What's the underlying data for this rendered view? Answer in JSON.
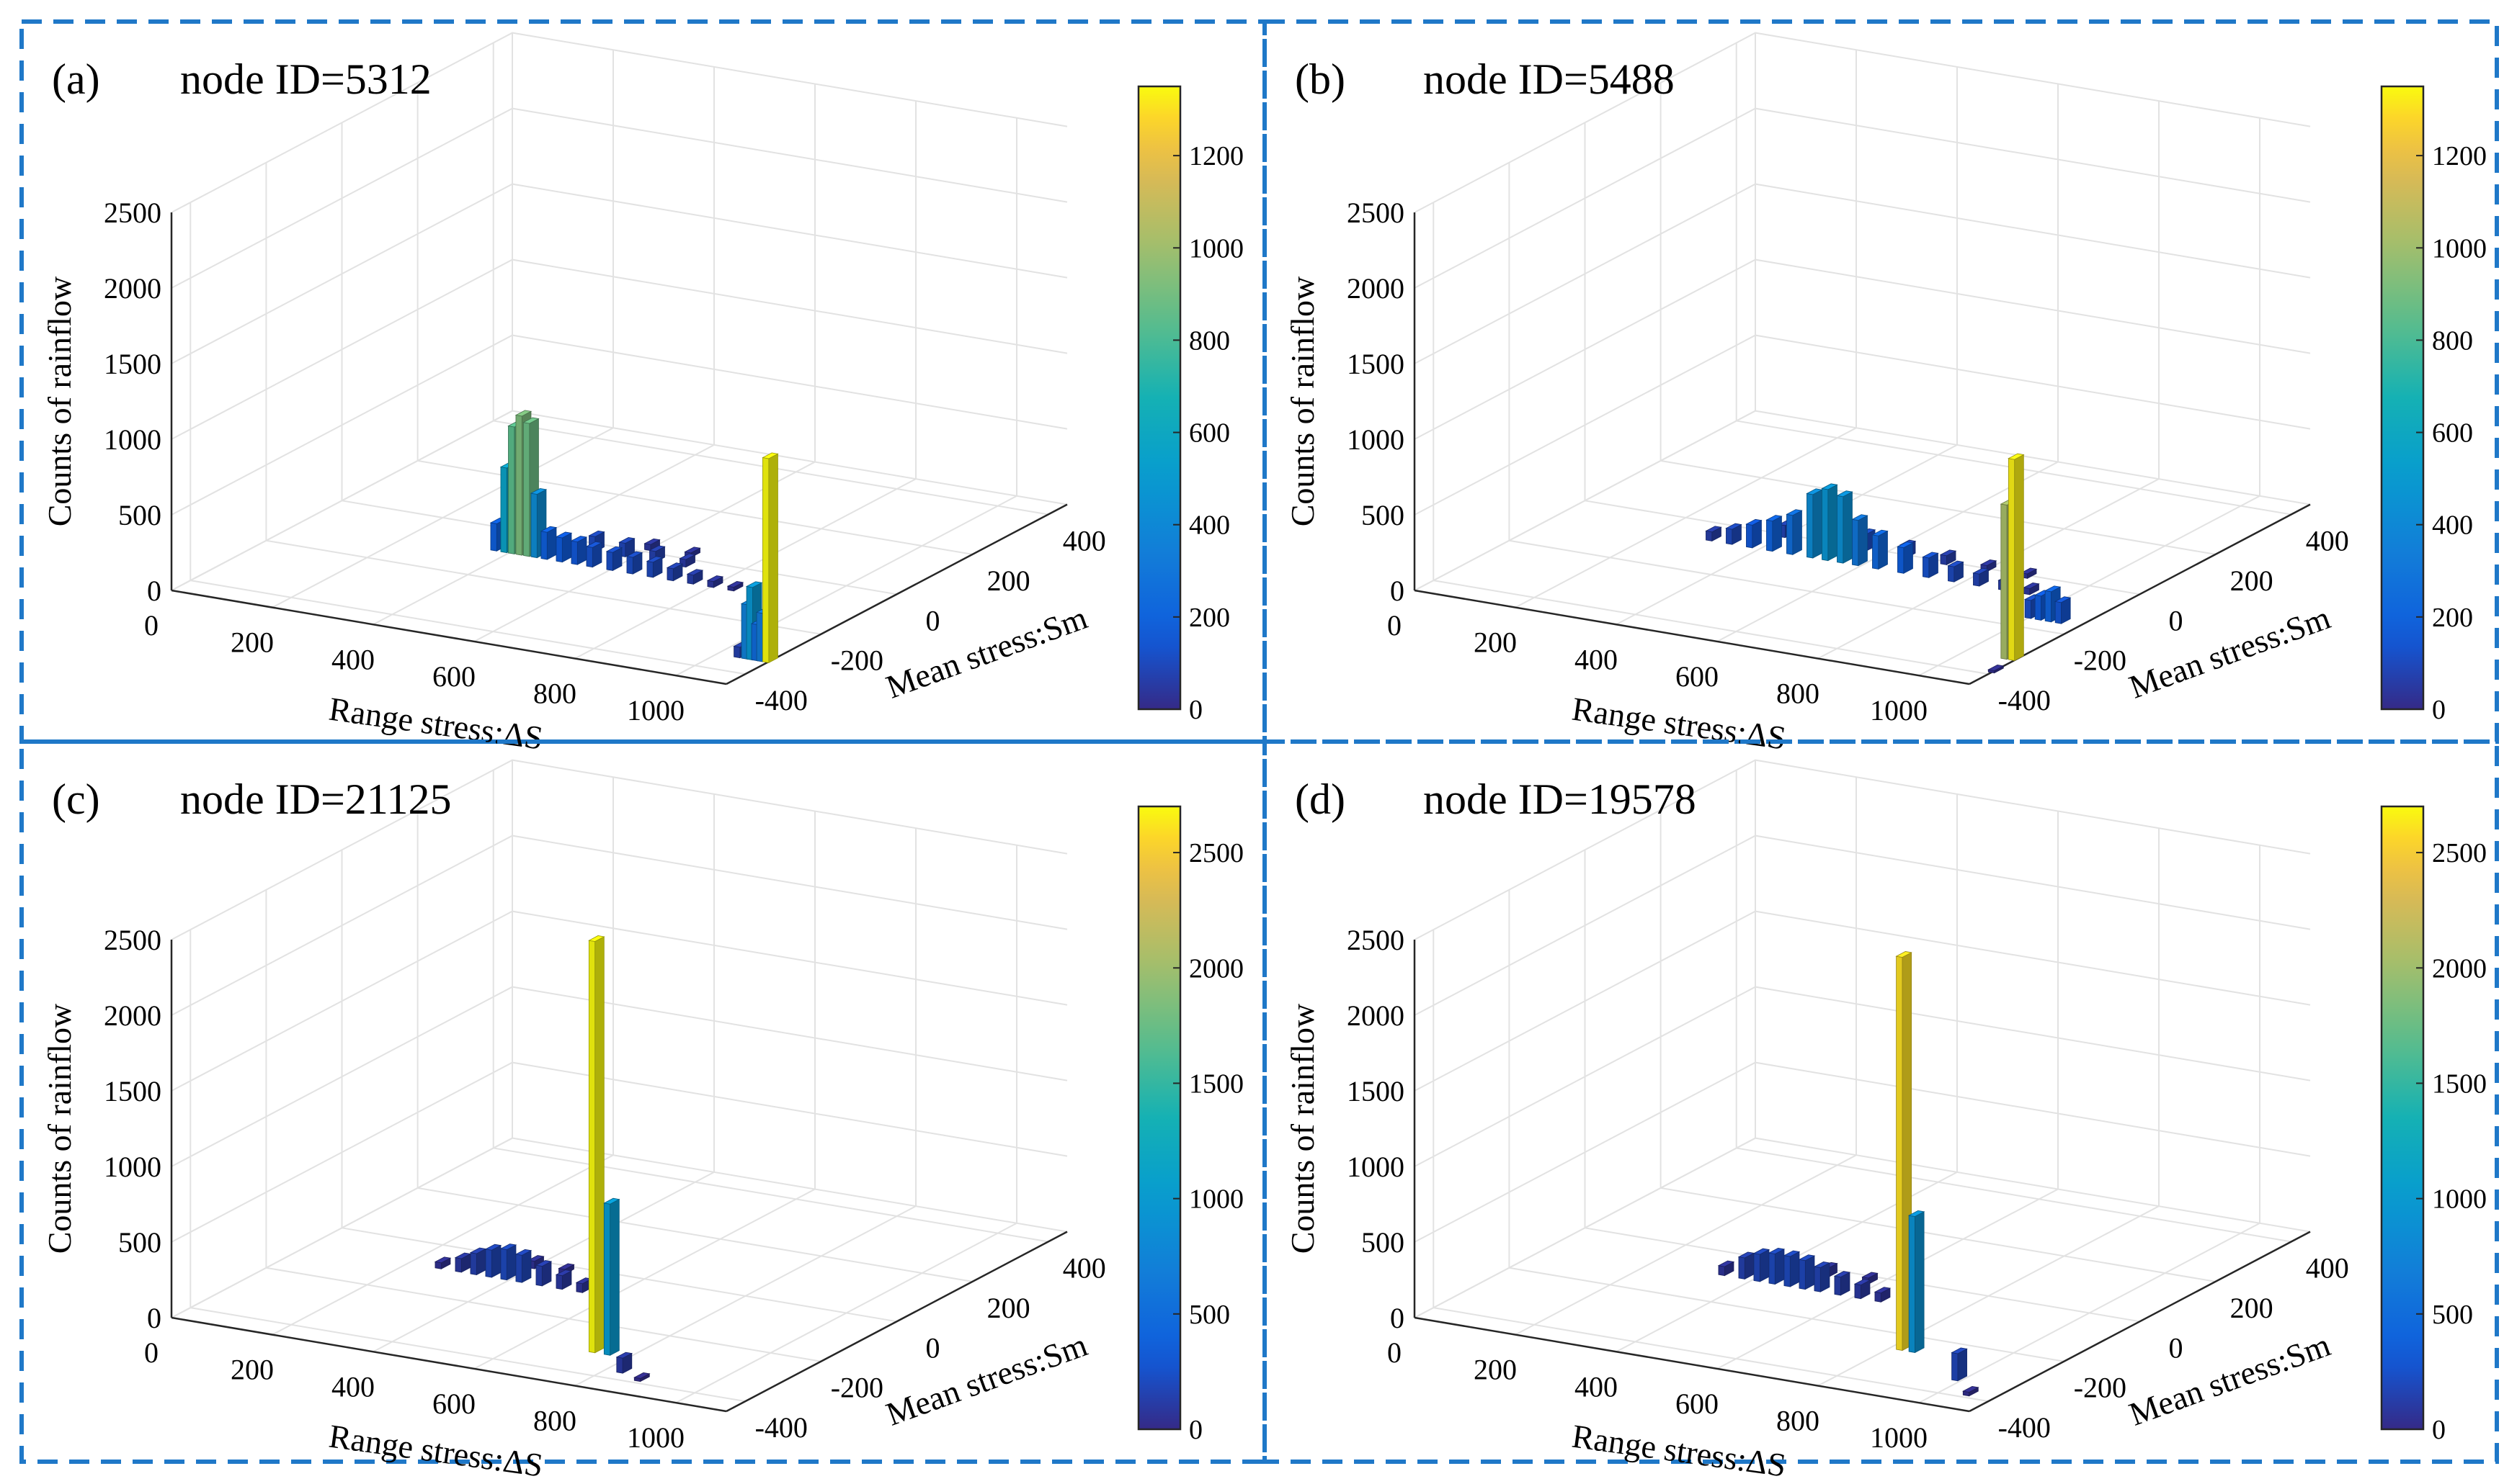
{
  "figure": {
    "chart_data": [
      {
        "type": "bar3d",
        "panel_label": "(a)",
        "title": "node ID=5312",
        "xlabel": "Range stress:ΔS",
        "ylabel": "Mean stress:Sm",
        "zlabel": "Counts of rainflow",
        "x_ticks": [
          "0",
          "200",
          "400",
          "600",
          "800",
          "1000"
        ],
        "y_ticks": [
          "-400",
          "-200",
          "0",
          "200",
          "400"
        ],
        "z_ticks": [
          "0",
          "500",
          "1000",
          "1500",
          "2000",
          "2500"
        ],
        "xlim": [
          0,
          1100
        ],
        "ylim": [
          -450,
          450
        ],
        "zlim": [
          0,
          2500
        ],
        "colorbar": {
          "min": 0,
          "max": 1350,
          "ticks": [
            "0",
            "200",
            "400",
            "600",
            "800",
            "1000",
            "1200"
          ],
          "tick_values": [
            0,
            200,
            400,
            600,
            800,
            1000,
            1200
          ]
        },
        "bars": [
          {
            "x": 370,
            "y": -80,
            "z": 180
          },
          {
            "x": 390,
            "y": -80,
            "z": 560
          },
          {
            "x": 405,
            "y": -80,
            "z": 840
          },
          {
            "x": 420,
            "y": -80,
            "z": 920
          },
          {
            "x": 435,
            "y": -80,
            "z": 880
          },
          {
            "x": 450,
            "y": -80,
            "z": 420
          },
          {
            "x": 470,
            "y": -80,
            "z": 180
          },
          {
            "x": 500,
            "y": -80,
            "z": 160
          },
          {
            "x": 530,
            "y": -80,
            "z": 150
          },
          {
            "x": 560,
            "y": -80,
            "z": 130
          },
          {
            "x": 600,
            "y": -80,
            "z": 120
          },
          {
            "x": 640,
            "y": -80,
            "z": 110
          },
          {
            "x": 680,
            "y": -80,
            "z": 100
          },
          {
            "x": 720,
            "y": -80,
            "z": 80
          },
          {
            "x": 760,
            "y": -80,
            "z": 60
          },
          {
            "x": 800,
            "y": -80,
            "z": 40
          },
          {
            "x": 840,
            "y": -80,
            "z": 25
          },
          {
            "x": 520,
            "y": -20,
            "z": 100
          },
          {
            "x": 580,
            "y": -20,
            "z": 90
          },
          {
            "x": 640,
            "y": -20,
            "z": 70
          },
          {
            "x": 700,
            "y": -20,
            "z": 50
          },
          {
            "x": 600,
            "y": 20,
            "z": 40
          },
          {
            "x": 680,
            "y": 20,
            "z": 30
          },
          {
            "x": 1040,
            "y": -330,
            "z": 70
          },
          {
            "x": 1055,
            "y": -330,
            "z": 360
          },
          {
            "x": 1065,
            "y": -330,
            "z": 480
          },
          {
            "x": 1075,
            "y": -330,
            "z": 240
          },
          {
            "x": 1085,
            "y": -330,
            "z": 320
          },
          {
            "x": 1097,
            "y": -330,
            "z": 1350
          }
        ]
      },
      {
        "type": "bar3d",
        "panel_label": "(b)",
        "title": "node ID=5488",
        "xlabel": "Range stress:ΔS",
        "ylabel": "Mean stress:Sm",
        "zlabel": "Counts of rainflow",
        "x_ticks": [
          "0",
          "200",
          "400",
          "600",
          "800",
          "1000"
        ],
        "y_ticks": [
          "-400",
          "-200",
          "0",
          "200",
          "400"
        ],
        "z_ticks": [
          "0",
          "500",
          "1000",
          "1500",
          "2000",
          "2500"
        ],
        "xlim": [
          0,
          1100
        ],
        "ylim": [
          -450,
          450
        ],
        "zlim": [
          0,
          2500
        ],
        "colorbar": {
          "min": 0,
          "max": 1350,
          "ticks": [
            "0",
            "200",
            "400",
            "600",
            "800",
            "1000",
            "1200"
          ],
          "tick_values": [
            0,
            200,
            400,
            600,
            800,
            1000,
            1200
          ]
        },
        "bars": [
          {
            "x": 300,
            "y": -60,
            "z": 60
          },
          {
            "x": 340,
            "y": -60,
            "z": 100
          },
          {
            "x": 380,
            "y": -60,
            "z": 150
          },
          {
            "x": 420,
            "y": -60,
            "z": 200
          },
          {
            "x": 460,
            "y": -60,
            "z": 260
          },
          {
            "x": 500,
            "y": -60,
            "z": 420
          },
          {
            "x": 530,
            "y": -60,
            "z": 470
          },
          {
            "x": 560,
            "y": -60,
            "z": 440
          },
          {
            "x": 590,
            "y": -60,
            "z": 300
          },
          {
            "x": 630,
            "y": -60,
            "z": 220
          },
          {
            "x": 680,
            "y": -60,
            "z": 170
          },
          {
            "x": 730,
            "y": -60,
            "z": 130
          },
          {
            "x": 780,
            "y": -60,
            "z": 100
          },
          {
            "x": 830,
            "y": -60,
            "z": 80
          },
          {
            "x": 880,
            "y": -60,
            "z": 60
          },
          {
            "x": 930,
            "y": -60,
            "z": 40
          },
          {
            "x": 400,
            "y": 0,
            "z": 80
          },
          {
            "x": 480,
            "y": 0,
            "z": 120
          },
          {
            "x": 560,
            "y": 0,
            "z": 110
          },
          {
            "x": 640,
            "y": 0,
            "z": 80
          },
          {
            "x": 720,
            "y": 0,
            "z": 60
          },
          {
            "x": 800,
            "y": 0,
            "z": 40
          },
          {
            "x": 880,
            "y": 0,
            "z": 30
          },
          {
            "x": 1000,
            "y": -150,
            "z": 120
          },
          {
            "x": 1020,
            "y": -150,
            "z": 160
          },
          {
            "x": 1040,
            "y": -150,
            "z": 200
          },
          {
            "x": 1060,
            "y": -150,
            "z": 140
          },
          {
            "x": 1080,
            "y": -320,
            "z": 1020
          },
          {
            "x": 1095,
            "y": -320,
            "z": 1330
          },
          {
            "x": 1100,
            "y": -380,
            "z": 15
          }
        ]
      },
      {
        "type": "bar3d",
        "panel_label": "(c)",
        "title": "node ID=21125",
        "xlabel": "Range stress:ΔS",
        "ylabel": "Mean stress:Sm",
        "zlabel": "Counts of rainflow",
        "x_ticks": [
          "0",
          "200",
          "400",
          "600",
          "800",
          "1000"
        ],
        "y_ticks": [
          "-400",
          "-200",
          "0",
          "200",
          "400"
        ],
        "z_ticks": [
          "0",
          "500",
          "1000",
          "1500",
          "2000",
          "2500"
        ],
        "xlim": [
          0,
          1100
        ],
        "ylim": [
          -450,
          450
        ],
        "zlim": [
          0,
          2500
        ],
        "colorbar": {
          "min": 0,
          "max": 2700,
          "ticks": [
            "0",
            "500",
            "1000",
            "1500",
            "2000",
            "2500"
          ],
          "tick_values": [
            0,
            500,
            1000,
            1500,
            2000,
            2500
          ]
        },
        "bars": [
          {
            "x": 260,
            "y": -80,
            "z": 40
          },
          {
            "x": 300,
            "y": -80,
            "z": 90
          },
          {
            "x": 330,
            "y": -80,
            "z": 140
          },
          {
            "x": 360,
            "y": -80,
            "z": 180
          },
          {
            "x": 390,
            "y": -80,
            "z": 200
          },
          {
            "x": 420,
            "y": -80,
            "z": 180
          },
          {
            "x": 460,
            "y": -80,
            "z": 130
          },
          {
            "x": 500,
            "y": -80,
            "z": 90
          },
          {
            "x": 540,
            "y": -80,
            "z": 60
          },
          {
            "x": 580,
            "y": -80,
            "z": 30
          },
          {
            "x": 340,
            "y": -20,
            "z": 60
          },
          {
            "x": 400,
            "y": -20,
            "z": 50
          },
          {
            "x": 460,
            "y": -20,
            "z": 30
          },
          {
            "x": 730,
            "y": -300,
            "z": 2720
          },
          {
            "x": 760,
            "y": -300,
            "z": 1000
          },
          {
            "x": 830,
            "y": -360,
            "z": 100
          },
          {
            "x": 880,
            "y": -380,
            "z": 20
          }
        ]
      },
      {
        "type": "bar3d",
        "panel_label": "(d)",
        "title": "node ID=19578",
        "xlabel": "Range stress:ΔS",
        "ylabel": "Mean stress:Sm",
        "zlabel": "Counts of rainflow",
        "x_ticks": [
          "0",
          "200",
          "400",
          "600",
          "800",
          "1000"
        ],
        "y_ticks": [
          "-400",
          "-200",
          "0",
          "200",
          "400"
        ],
        "z_ticks": [
          "0",
          "500",
          "1000",
          "1500",
          "2000",
          "2500"
        ],
        "xlim": [
          0,
          1100
        ],
        "ylim": [
          -450,
          450
        ],
        "zlim": [
          0,
          2500
        ],
        "colorbar": {
          "min": 0,
          "max": 2700,
          "ticks": [
            "0",
            "500",
            "1000",
            "1500",
            "2000",
            "2500"
          ],
          "tick_values": [
            0,
            500,
            1000,
            1500,
            2000,
            2500
          ]
        },
        "bars": [
          {
            "x": 340,
            "y": -80,
            "z": 60
          },
          {
            "x": 380,
            "y": -80,
            "z": 140
          },
          {
            "x": 410,
            "y": -80,
            "z": 180
          },
          {
            "x": 440,
            "y": -80,
            "z": 200
          },
          {
            "x": 470,
            "y": -80,
            "z": 200
          },
          {
            "x": 500,
            "y": -80,
            "z": 190
          },
          {
            "x": 530,
            "y": -80,
            "z": 160
          },
          {
            "x": 570,
            "y": -80,
            "z": 120
          },
          {
            "x": 610,
            "y": -80,
            "z": 90
          },
          {
            "x": 650,
            "y": -80,
            "z": 60
          },
          {
            "x": 700,
            "y": -80,
            "z": 40
          },
          {
            "x": 420,
            "y": -20,
            "z": 70
          },
          {
            "x": 500,
            "y": -20,
            "z": 60
          },
          {
            "x": 580,
            "y": -20,
            "z": 40
          },
          {
            "x": 820,
            "y": -250,
            "z": 2600
          },
          {
            "x": 845,
            "y": -250,
            "z": 900
          },
          {
            "x": 990,
            "y": -330,
            "z": 180
          },
          {
            "x": 1050,
            "y": -380,
            "z": 25
          }
        ]
      }
    ]
  }
}
